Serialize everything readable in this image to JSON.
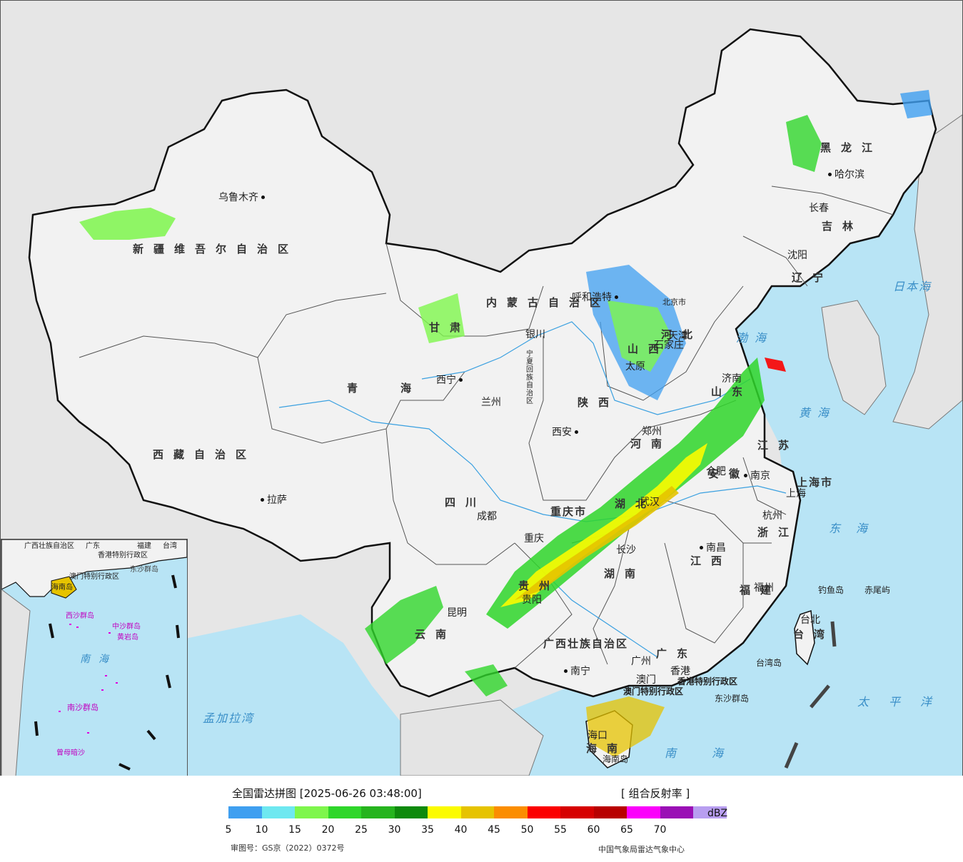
{
  "legend": {
    "title": "全国雷达拼图 [2025-06-26 03:48:00]",
    "product": "[ 组合反射率 ]",
    "unit": "dBZ",
    "ticks": [
      "5",
      "10",
      "15",
      "20",
      "25",
      "30",
      "35",
      "40",
      "45",
      "50",
      "55",
      "60",
      "65",
      "70"
    ],
    "colors": [
      "#3f9ff0",
      "#6ee8f0",
      "#7ef64c",
      "#2fd62a",
      "#26b41e",
      "#0e8a0c",
      "#fbfb00",
      "#e6c300",
      "#fb8d00",
      "#fb0000",
      "#d60000",
      "#b80000",
      "#fb00fb",
      "#9a0fb5",
      "#b89ef0"
    ],
    "review_number": "审图号：GS京（2022）0372号",
    "organization": "中国气象局雷达气象中心"
  },
  "map": {
    "colors": {
      "sea": "#b8e4f5",
      "land_china": "#f2f2f2",
      "land_foreign": "#e4e4e4",
      "border": "#111111",
      "river": "#3aa0e0"
    },
    "provinces": [
      "新疆维吾尔自治区",
      "西藏自治区",
      "青海",
      "甘肃",
      "内蒙古自治区",
      "黑龙江",
      "吉林",
      "辽宁",
      "河北",
      "山西",
      "陕西",
      "四川",
      "云南",
      "贵州",
      "广西壮族自治区",
      "广东",
      "湖南",
      "湖北",
      "江西",
      "安徽",
      "江苏",
      "浙江",
      "福建",
      "河南",
      "山东",
      "海南",
      "台湾",
      "重庆市",
      "上海市",
      "宁夏回族自治区",
      "香港特别行政区",
      "澳门特别行政区"
    ],
    "cities": [
      "乌鲁木齐",
      "拉萨",
      "西宁",
      "兰州",
      "银川",
      "呼和浩特",
      "北京市",
      "天津",
      "石家庄",
      "太原",
      "济南",
      "郑州",
      "西安",
      "成都",
      "重庆",
      "贵阳",
      "昆明",
      "南宁",
      "广州",
      "香港",
      "澳门",
      "长沙",
      "武汉",
      "南昌",
      "合肥",
      "南京",
      "上海",
      "杭州",
      "福州",
      "台北",
      "哈尔滨",
      "长春",
      "沈阳",
      "海口"
    ],
    "seas": [
      "日本海",
      "渤海",
      "黄海",
      "东海",
      "南海",
      "太平洋",
      "孟加拉湾"
    ],
    "islands": [
      "钓鱼岛",
      "赤尾屿",
      "台湾岛",
      "东沙群岛",
      "海南岛"
    ],
    "inset_labels": [
      "广西壮族自治区",
      "广东",
      "福建",
      "台湾",
      "香港特别行政区",
      "澳门特别行政区",
      "东沙群岛",
      "海南岛",
      "西沙群岛",
      "中沙群岛",
      "黄岩岛",
      "南海",
      "南沙群岛",
      "曾母暗沙"
    ]
  }
}
